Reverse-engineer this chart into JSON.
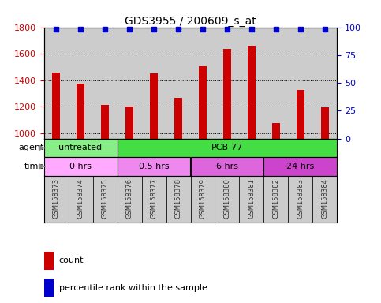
{
  "title": "GDS3955 / 200609_s_at",
  "samples": [
    "GSM158373",
    "GSM158374",
    "GSM158375",
    "GSM158376",
    "GSM158377",
    "GSM158378",
    "GSM158379",
    "GSM158380",
    "GSM158381",
    "GSM158382",
    "GSM158383",
    "GSM158384"
  ],
  "counts": [
    1460,
    1375,
    1215,
    1205,
    1450,
    1265,
    1505,
    1635,
    1660,
    1075,
    1325,
    1195
  ],
  "percentile_ranks": [
    98,
    98,
    98,
    98,
    98,
    98,
    98,
    98,
    98,
    98,
    98,
    98
  ],
  "bar_color": "#cc0000",
  "dot_color": "#0000cc",
  "ylim_left": [
    960,
    1800
  ],
  "ylim_right": [
    0,
    100
  ],
  "yticks_left": [
    1000,
    1200,
    1400,
    1600,
    1800
  ],
  "yticks_right": [
    0,
    25,
    50,
    75,
    100
  ],
  "bg_color": "#cccccc",
  "agent_row": [
    {
      "label": "untreated",
      "start": 0,
      "end": 3,
      "color": "#88ee88"
    },
    {
      "label": "PCB-77",
      "start": 3,
      "end": 12,
      "color": "#44dd44"
    }
  ],
  "time_row": [
    {
      "label": "0 hrs",
      "start": 0,
      "end": 3,
      "color": "#ffaaff"
    },
    {
      "label": "0.5 hrs",
      "start": 3,
      "end": 6,
      "color": "#ee88ee"
    },
    {
      "label": "6 hrs",
      "start": 6,
      "end": 9,
      "color": "#dd66dd"
    },
    {
      "label": "24 hrs",
      "start": 9,
      "end": 12,
      "color": "#cc44cc"
    }
  ],
  "legend_count_color": "#cc0000",
  "legend_dot_color": "#0000cc",
  "tick_label_color_left": "#cc0000",
  "tick_label_color_right": "#0000cc",
  "bar_width": 0.35
}
